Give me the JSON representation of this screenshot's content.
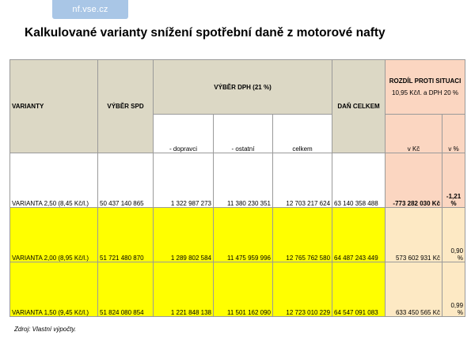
{
  "logo": "nf.vse.cz",
  "title": "Kalkulované varianty snížení spotřební daně z motorové nafty",
  "table": {
    "headers": {
      "varianty": "VARIANTY",
      "vyber_spd": "VÝBĚR SPD",
      "vyber_dph": "VÝBĚR DPH (21 %)",
      "dan_celkem": "DAŇ CELKEM",
      "rozdil_line1": "ROZDÍL PROTI SITUACI",
      "rozdil_line2": "10,95 Kč/l. a DPH 20 %"
    },
    "subheaders": {
      "dopravci": "- dopravci",
      "ostatni": "- ostatní",
      "celkem": "celkem",
      "v_kc": "v Kč",
      "v_pct": "v %"
    },
    "rows": [
      {
        "varianta": "VARIANTA 2,50 (8,45 Kč/l.)",
        "spd": "50 437 140 865",
        "dopravci": "1 322 987 273",
        "ostatni": "11 380 230 351",
        "celkem": "12 703 217 624",
        "dan": "63 140 358 488",
        "v_kc": "-773 282 030 Kč",
        "v_pct": "-1,21 %"
      },
      {
        "varianta": "VARIANTA 2,00 (8,95 Kč/l.)",
        "spd": "51 721 480 870",
        "dopravci": "1 289 802 584",
        "ostatni": "11 475 959 996",
        "celkem": "12 765 762 580",
        "dan": "64 487 243 449",
        "v_kc": "573 602 931 Kč",
        "v_pct": "0,90 %"
      },
      {
        "varianta": "VARIANTA 1,50 (9,45 Kč/l.)",
        "spd": "51 824 080 854",
        "dopravci": "1 221 848 138",
        "ostatni": "11 501 162 090",
        "celkem": "12 723 010 229",
        "dan": "64 547 091 083",
        "v_kc": "633 450 565 Kč",
        "v_pct": "0,99 %"
      }
    ]
  },
  "source": "Zdroj: Vlastní výpočty."
}
